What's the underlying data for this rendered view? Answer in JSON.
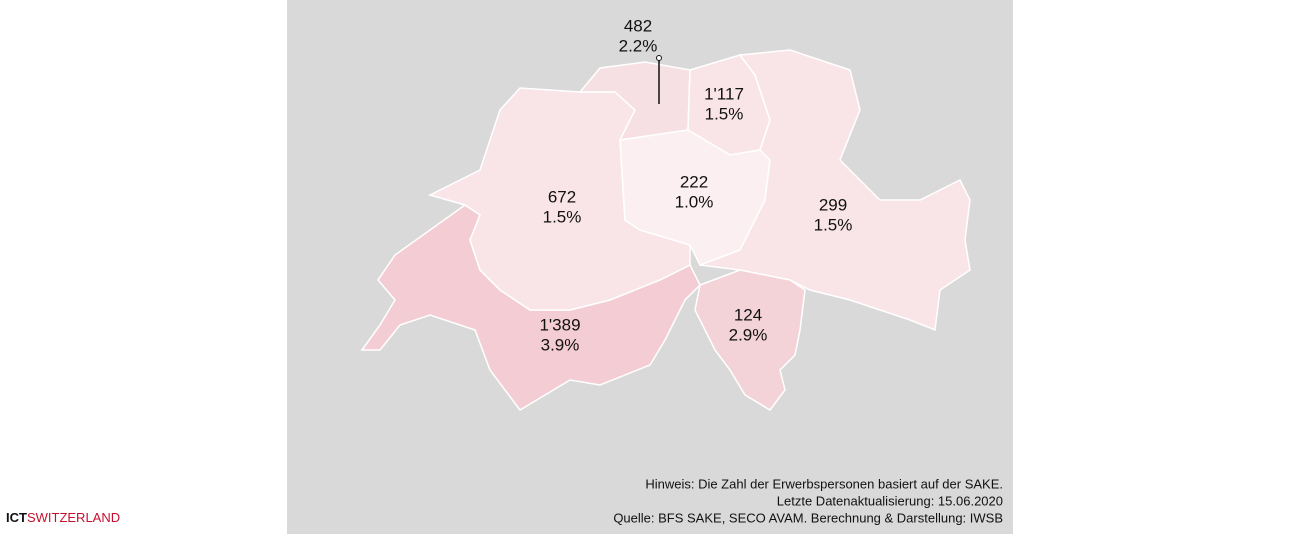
{
  "regions": [
    {
      "count": "1'389",
      "share": "3.9%",
      "color": "#f3cdd3"
    },
    {
      "count": "672",
      "share": "1.5%",
      "color": "#f9e5e8"
    },
    {
      "count": "482",
      "share": "2.2%",
      "color": "#f7e0e3"
    },
    {
      "count": "1'117",
      "share": "1.5%",
      "color": "#f9e5e8"
    },
    {
      "count": "222",
      "share": "1.0%",
      "color": "#fbeff1"
    },
    {
      "count": "299",
      "share": "1.5%",
      "color": "#f9e5e8"
    },
    {
      "count": "124",
      "share": "2.9%",
      "color": "#f4d3d8"
    }
  ],
  "notes": [
    "Hinweis: Die Zahl der Erwerbspersonen basiert auf der SAKE.",
    "Letzte Datenaktualisierung: 15.06.2020",
    "Quelle: BFS SAKE, SECO AVAM. Berechnung & Darstellung: IWSB"
  ],
  "logo": {
    "bold": "ICT",
    "rest": "SWITZERLAND"
  }
}
